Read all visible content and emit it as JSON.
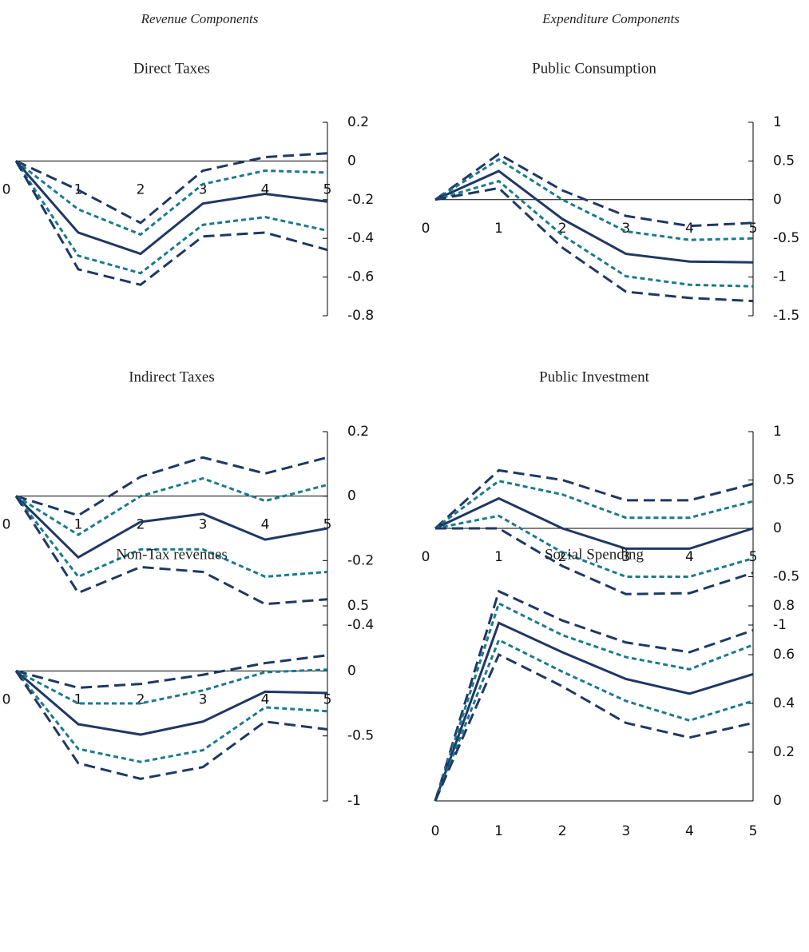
{
  "headers": [
    "Revenue Components",
    "Expenditure Components"
  ],
  "chart_data": [
    {
      "type": "line",
      "title": "Direct Taxes",
      "x": [
        0,
        1,
        2,
        3,
        4,
        5
      ],
      "xlim": [
        0,
        5
      ],
      "xticks": [
        0,
        1,
        2,
        3,
        4,
        5
      ],
      "ylim": [
        -0.8,
        0.2
      ],
      "yticks": [
        -0.8,
        -0.6,
        -0.4,
        -0.2,
        0,
        0.2
      ],
      "series": [
        {
          "color": "#1f3864",
          "style": "dashed",
          "values": [
            0,
            -0.15,
            -0.32,
            -0.05,
            0.02,
            0.04
          ]
        },
        {
          "color": "#1b7a8c",
          "style": "dotted",
          "values": [
            0,
            -0.25,
            -0.38,
            -0.12,
            -0.05,
            -0.06
          ]
        },
        {
          "color": "#1f3864",
          "style": "solid",
          "values": [
            0,
            -0.37,
            -0.48,
            -0.22,
            -0.17,
            -0.21
          ]
        },
        {
          "color": "#1b7a8c",
          "style": "dotted",
          "values": [
            0,
            -0.49,
            -0.58,
            -0.33,
            -0.29,
            -0.36
          ]
        },
        {
          "color": "#1f3864",
          "style": "dashed",
          "values": [
            0,
            -0.56,
            -0.64,
            -0.39,
            -0.37,
            -0.46
          ]
        }
      ]
    },
    {
      "type": "line",
      "title": "Public Consumption",
      "x": [
        0,
        1,
        2,
        3,
        4,
        5
      ],
      "xlim": [
        0,
        5
      ],
      "xticks": [
        0,
        1,
        2,
        3,
        4,
        5
      ],
      "ylim": [
        -1.5,
        1
      ],
      "yticks": [
        -1.5,
        -1,
        -0.5,
        0,
        0.5,
        1
      ],
      "series": [
        {
          "color": "#1f3864",
          "style": "dashed",
          "values": [
            0,
            0.59,
            0.12,
            -0.21,
            -0.34,
            -0.3
          ]
        },
        {
          "color": "#1b7a8c",
          "style": "dotted",
          "values": [
            0,
            0.52,
            0,
            -0.41,
            -0.52,
            -0.5
          ]
        },
        {
          "color": "#1f3864",
          "style": "solid",
          "values": [
            0,
            0.37,
            -0.25,
            -0.7,
            -0.8,
            -0.81
          ]
        },
        {
          "color": "#1b7a8c",
          "style": "dotted",
          "values": [
            0,
            0.24,
            -0.46,
            -0.99,
            -1.1,
            -1.12
          ]
        },
        {
          "color": "#1f3864",
          "style": "dashed",
          "values": [
            0,
            0.15,
            -0.62,
            -1.19,
            -1.27,
            -1.31
          ]
        }
      ]
    },
    {
      "type": "line",
      "title": "Indirect Taxes",
      "x": [
        0,
        1,
        2,
        3,
        4,
        5
      ],
      "xlim": [
        0,
        5
      ],
      "xticks": [
        0,
        1,
        2,
        3,
        4,
        5
      ],
      "ylim": [
        -0.4,
        0.2
      ],
      "yticks": [
        -0.4,
        -0.2,
        0,
        0.2
      ],
      "series": [
        {
          "color": "#1f3864",
          "style": "dashed",
          "values": [
            0,
            -0.06,
            0.06,
            0.12,
            0.07,
            0.12
          ]
        },
        {
          "color": "#1b7a8c",
          "style": "dotted",
          "values": [
            0,
            -0.12,
            0,
            0.055,
            -0.015,
            0.035
          ]
        },
        {
          "color": "#1f3864",
          "style": "solid",
          "values": [
            0,
            -0.19,
            -0.08,
            -0.055,
            -0.135,
            -0.1
          ]
        },
        {
          "color": "#1b7a8c",
          "style": "dotted",
          "values": [
            0,
            -0.25,
            -0.165,
            -0.165,
            -0.25,
            -0.235
          ]
        },
        {
          "color": "#1f3864",
          "style": "dashed",
          "values": [
            0,
            -0.3,
            -0.22,
            -0.235,
            -0.335,
            -0.32
          ]
        }
      ]
    },
    {
      "type": "line",
      "title": "Public Investment",
      "x": [
        0,
        1,
        2,
        3,
        4,
        5
      ],
      "xlim": [
        0,
        5
      ],
      "xticks": [
        0,
        1,
        2,
        3,
        4,
        5
      ],
      "ylim": [
        -1,
        1
      ],
      "yticks": [
        -1,
        -0.5,
        0,
        0.5,
        1
      ],
      "series": [
        {
          "color": "#1f3864",
          "style": "dashed",
          "values": [
            0,
            0.6,
            0.5,
            0.29,
            0.29,
            0.46
          ]
        },
        {
          "color": "#1b7a8c",
          "style": "dotted",
          "values": [
            0,
            0.49,
            0.35,
            0.11,
            0.11,
            0.28
          ]
        },
        {
          "color": "#1f3864",
          "style": "solid",
          "values": [
            0,
            0.31,
            0,
            -0.21,
            -0.21,
            0
          ]
        },
        {
          "color": "#1b7a8c",
          "style": "dotted",
          "values": [
            0,
            0.13,
            -0.25,
            -0.5,
            -0.5,
            -0.31
          ]
        },
        {
          "color": "#1f3864",
          "style": "dashed",
          "values": [
            0,
            0,
            -0.39,
            -0.68,
            -0.67,
            -0.46
          ]
        }
      ]
    },
    {
      "type": "line",
      "title": "Non-Tax revenues",
      "x": [
        0,
        1,
        2,
        3,
        4,
        5
      ],
      "xlim": [
        0,
        5
      ],
      "xticks": [
        0,
        1,
        2,
        3,
        4,
        5
      ],
      "ylim": [
        -1,
        0.5
      ],
      "yticks": [
        -1,
        -0.5,
        0,
        0.5
      ],
      "series": [
        {
          "color": "#1f3864",
          "style": "dashed",
          "values": [
            0,
            -0.13,
            -0.1,
            -0.03,
            0.06,
            0.12
          ]
        },
        {
          "color": "#1b7a8c",
          "style": "dotted",
          "values": [
            0,
            -0.25,
            -0.25,
            -0.15,
            -0.01,
            0.01
          ]
        },
        {
          "color": "#1f3864",
          "style": "solid",
          "values": [
            0,
            -0.41,
            -0.49,
            -0.39,
            -0.16,
            -0.17
          ]
        },
        {
          "color": "#1b7a8c",
          "style": "dotted",
          "values": [
            0,
            -0.6,
            -0.7,
            -0.61,
            -0.28,
            -0.31
          ]
        },
        {
          "color": "#1f3864",
          "style": "dashed",
          "values": [
            0,
            -0.71,
            -0.83,
            -0.74,
            -0.39,
            -0.45
          ]
        }
      ]
    },
    {
      "type": "line",
      "title": "Social Spending",
      "x": [
        0,
        1,
        2,
        3,
        4,
        5
      ],
      "xlim": [
        0,
        5
      ],
      "xticks": [
        0,
        1,
        2,
        3,
        4,
        5
      ],
      "ylim": [
        0,
        0.8
      ],
      "yticks": [
        0,
        0.2,
        0.4,
        0.6,
        0.8
      ],
      "series": [
        {
          "color": "#1f3864",
          "style": "dashed",
          "values": [
            0,
            0.86,
            0.74,
            0.65,
            0.61,
            0.7
          ]
        },
        {
          "color": "#1b7a8c",
          "style": "dotted",
          "values": [
            0,
            0.81,
            0.68,
            0.59,
            0.54,
            0.64
          ]
        },
        {
          "color": "#1f3864",
          "style": "solid",
          "values": [
            0,
            0.73,
            0.61,
            0.5,
            0.44,
            0.52
          ]
        },
        {
          "color": "#1b7a8c",
          "style": "dotted",
          "values": [
            0,
            0.66,
            0.53,
            0.41,
            0.33,
            0.41
          ]
        },
        {
          "color": "#1f3864",
          "style": "dashed",
          "values": [
            0,
            0.6,
            0.47,
            0.32,
            0.26,
            0.32
          ]
        }
      ]
    }
  ]
}
